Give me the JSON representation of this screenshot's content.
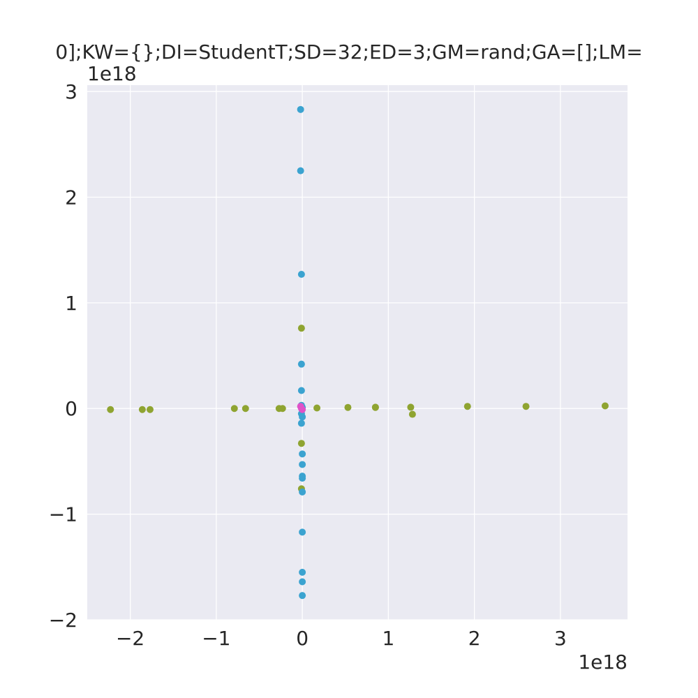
{
  "chart_data": {
    "type": "scatter",
    "title": "0];KW={};DI=StudentT;SD=32;ED=3;GM=rand;GA=[];LM=",
    "x_offset_label": "1e18",
    "y_offset_label": "1e18",
    "xlim": [
      -2.5,
      3.78
    ],
    "ylim": [
      -2.0,
      3.06
    ],
    "x_ticks": [
      {
        "value": -2,
        "label": "−2"
      },
      {
        "value": -1,
        "label": "−1"
      },
      {
        "value": 0,
        "label": "0"
      },
      {
        "value": 1,
        "label": "1"
      },
      {
        "value": 2,
        "label": "2"
      },
      {
        "value": 3,
        "label": "3"
      }
    ],
    "y_ticks": [
      {
        "value": -2,
        "label": "−2"
      },
      {
        "value": -1,
        "label": "−1"
      },
      {
        "value": 0,
        "label": "0"
      },
      {
        "value": 1,
        "label": "1"
      },
      {
        "value": 2,
        "label": "2"
      },
      {
        "value": 3,
        "label": "3"
      }
    ],
    "grid": true,
    "background": "#eaeaf2",
    "series": [
      {
        "color": "#8fa431",
        "points": [
          [
            -2.23,
            -0.01
          ],
          [
            -1.86,
            -0.01
          ],
          [
            -1.77,
            -0.01
          ],
          [
            -0.79,
            0.0
          ],
          [
            -0.66,
            0.0
          ],
          [
            -0.27,
            0.0
          ],
          [
            -0.23,
            0.0
          ],
          [
            0.17,
            0.005
          ],
          [
            0.53,
            0.01
          ],
          [
            0.85,
            0.01
          ],
          [
            0.85,
            0.012
          ],
          [
            1.26,
            0.012
          ],
          [
            1.28,
            -0.055
          ],
          [
            1.92,
            0.02
          ],
          [
            2.6,
            0.02
          ],
          [
            3.52,
            0.025
          ],
          [
            -0.01,
            0.76
          ],
          [
            -0.01,
            -0.33
          ],
          [
            -0.01,
            -0.76
          ]
        ]
      },
      {
        "color": "#3ba3d0",
        "points": [
          [
            -0.02,
            2.83
          ],
          [
            -0.02,
            2.25
          ],
          [
            -0.01,
            1.27
          ],
          [
            -0.01,
            0.42
          ],
          [
            -0.01,
            0.17
          ],
          [
            -0.01,
            0.03
          ],
          [
            0.0,
            0.01
          ],
          [
            -0.01,
            -0.05
          ],
          [
            0.0,
            -0.08
          ],
          [
            -0.01,
            -0.14
          ],
          [
            0.0,
            -0.43
          ],
          [
            0.0,
            -0.53
          ],
          [
            0.0,
            -0.64
          ],
          [
            0.0,
            -0.66
          ],
          [
            0.0,
            -0.79
          ],
          [
            0.0,
            -1.17
          ],
          [
            0.0,
            -1.55
          ],
          [
            0.0,
            -1.64
          ],
          [
            0.0,
            -1.77
          ]
        ]
      },
      {
        "color": "#e052c8",
        "points": [
          [
            -0.02,
            0.02
          ],
          [
            -0.01,
            0.0
          ],
          [
            0.0,
            -0.01
          ]
        ]
      }
    ]
  }
}
